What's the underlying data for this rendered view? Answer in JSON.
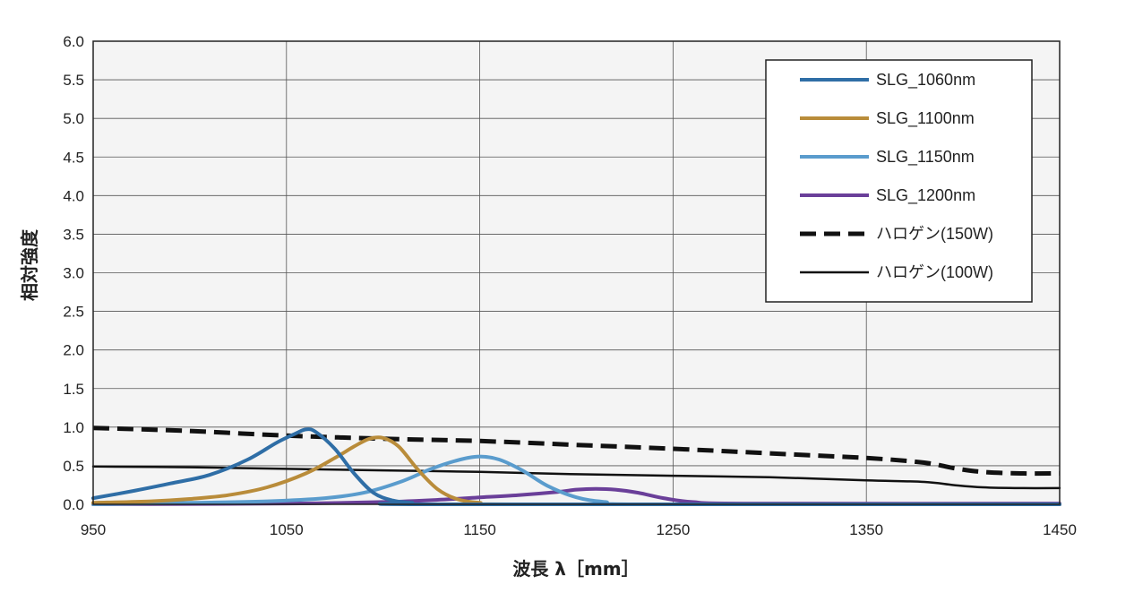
{
  "chart_data": {
    "type": "line",
    "xlabel": "波長 λ［mm］",
    "ylabel": "相対強度",
    "xlim": [
      950,
      1450
    ],
    "ylim": [
      0,
      6.0
    ],
    "x_ticks": [
      "950",
      "1050",
      "1150",
      "1250",
      "1350",
      "1450"
    ],
    "y_ticks": [
      "0.0",
      "0.5",
      "1.0",
      "1.5",
      "2.0",
      "2.5",
      "3.0",
      "3.5",
      "4.0",
      "4.5",
      "5.0",
      "5.5",
      "6.0"
    ],
    "grid": true,
    "legend_position": "top-right",
    "series": [
      {
        "name": "SLG_1060nm",
        "color": "#2f6ea6",
        "style": "solid",
        "width": 4,
        "x": [
          950,
          970,
          990,
          1010,
          1030,
          1045,
          1055,
          1060,
          1065,
          1075,
          1085,
          1095,
          1105,
          1115,
          1125,
          1450
        ],
        "y": [
          0.08,
          0.17,
          0.27,
          0.38,
          0.58,
          0.8,
          0.92,
          0.97,
          0.94,
          0.72,
          0.4,
          0.15,
          0.05,
          0.02,
          0.0,
          0.0
        ]
      },
      {
        "name": "SLG_1100nm",
        "color": "#b98c3a",
        "style": "solid",
        "width": 4,
        "x": [
          950,
          980,
          1000,
          1020,
          1040,
          1060,
          1075,
          1085,
          1093,
          1100,
          1108,
          1118,
          1128,
          1138,
          1150,
          1170,
          1450
        ],
        "y": [
          0.02,
          0.04,
          0.07,
          0.12,
          0.22,
          0.4,
          0.6,
          0.75,
          0.85,
          0.86,
          0.75,
          0.45,
          0.2,
          0.07,
          0.02,
          0.0,
          0.0
        ]
      },
      {
        "name": "SLG_1150nm",
        "color": "#5a9ccd",
        "style": "solid",
        "width": 4,
        "x": [
          950,
          1000,
          1040,
          1070,
          1090,
          1110,
          1125,
          1140,
          1150,
          1160,
          1172,
          1185,
          1200,
          1215,
          1235,
          1450
        ],
        "y": [
          0.0,
          0.02,
          0.04,
          0.08,
          0.15,
          0.3,
          0.46,
          0.58,
          0.62,
          0.58,
          0.44,
          0.24,
          0.09,
          0.03,
          0.0,
          0.0
        ]
      },
      {
        "name": "SLG_1200nm",
        "color": "#6a3f99",
        "style": "solid",
        "width": 4,
        "x": [
          950,
          1050,
          1100,
          1130,
          1150,
          1170,
          1190,
          1200,
          1210,
          1220,
          1232,
          1245,
          1260,
          1290,
          1450
        ],
        "y": [
          0.0,
          0.01,
          0.03,
          0.06,
          0.09,
          0.12,
          0.16,
          0.19,
          0.2,
          0.19,
          0.15,
          0.08,
          0.03,
          0.01,
          0.01
        ]
      },
      {
        "name": "ハロゲン(150W)",
        "color": "#111111",
        "style": "dashed",
        "width": 5,
        "x": [
          950,
          1000,
          1050,
          1100,
          1150,
          1200,
          1250,
          1300,
          1350,
          1380,
          1395,
          1410,
          1430,
          1450
        ],
        "y": [
          0.99,
          0.95,
          0.89,
          0.85,
          0.82,
          0.77,
          0.72,
          0.66,
          0.6,
          0.54,
          0.47,
          0.42,
          0.4,
          0.4
        ]
      },
      {
        "name": "ハロゲン(100W)",
        "color": "#111111",
        "style": "solid",
        "width": 2.5,
        "x": [
          950,
          1000,
          1050,
          1100,
          1150,
          1200,
          1250,
          1300,
          1350,
          1380,
          1395,
          1410,
          1430,
          1450
        ],
        "y": [
          0.49,
          0.48,
          0.46,
          0.44,
          0.42,
          0.39,
          0.37,
          0.35,
          0.31,
          0.29,
          0.25,
          0.22,
          0.21,
          0.21
        ]
      }
    ]
  }
}
